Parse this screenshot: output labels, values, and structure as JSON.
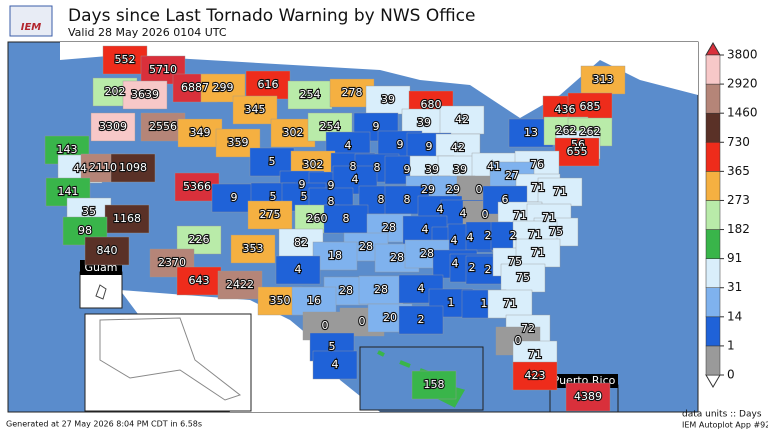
{
  "header": {
    "logo": "IEM",
    "title": "Days since Last Tornado Warning by NWS Office",
    "subtitle": "Valid 28 May 2026 0104 UTC"
  },
  "insets": {
    "guam": "Guam",
    "puerto_rico": "Puerto Rico"
  },
  "offices": [
    552,
    5710,
    202,
    3639,
    6887,
    299,
    616,
    254,
    278,
    313,
    39,
    680,
    436,
    685,
    3309,
    2556,
    349,
    345,
    302,
    254,
    9,
    39,
    42,
    13,
    262,
    262,
    56,
    655,
    143,
    359,
    4,
    9,
    9,
    42,
    44,
    2110,
    1098,
    5,
    302,
    8,
    8,
    9,
    39,
    39,
    41,
    76,
    5366,
    9,
    9,
    4,
    29,
    29,
    0,
    27,
    71,
    141,
    9,
    5,
    5,
    8,
    8,
    8,
    4,
    4,
    0,
    6,
    71,
    35,
    275,
    260,
    8,
    28,
    4,
    71,
    71,
    75,
    1168,
    98,
    226,
    353,
    82,
    28,
    4,
    4,
    2,
    2,
    71,
    840,
    18,
    28,
    28,
    2370,
    4,
    4,
    2,
    2,
    75,
    71,
    643,
    2422,
    28,
    28,
    4,
    75,
    350,
    16,
    1,
    1,
    71,
    0,
    0,
    20,
    2,
    72,
    0,
    5,
    71,
    4,
    158,
    423,
    4389
  ],
  "legend": {
    "ticks": [
      0,
      1,
      14,
      31,
      91,
      182,
      273,
      365,
      730,
      1460,
      2920,
      3800
    ],
    "colors": [
      "#9a9a9a",
      "#1f62d8",
      "#7fb2ee",
      "#d9eefb",
      "#39b54a",
      "#b9eba9",
      "#f5b041",
      "#ee2c1b",
      "#5a3127",
      "#b58578",
      "#f7c8c8"
    ],
    "under_color": "#ffffff",
    "over_color": "#d9303b"
  },
  "footer": {
    "generated": "Generated at 27 May 2026 8:04 PM CDT in 6.58s",
    "units": "data units :: Days",
    "app": "IEM Autoplot App #92"
  }
}
